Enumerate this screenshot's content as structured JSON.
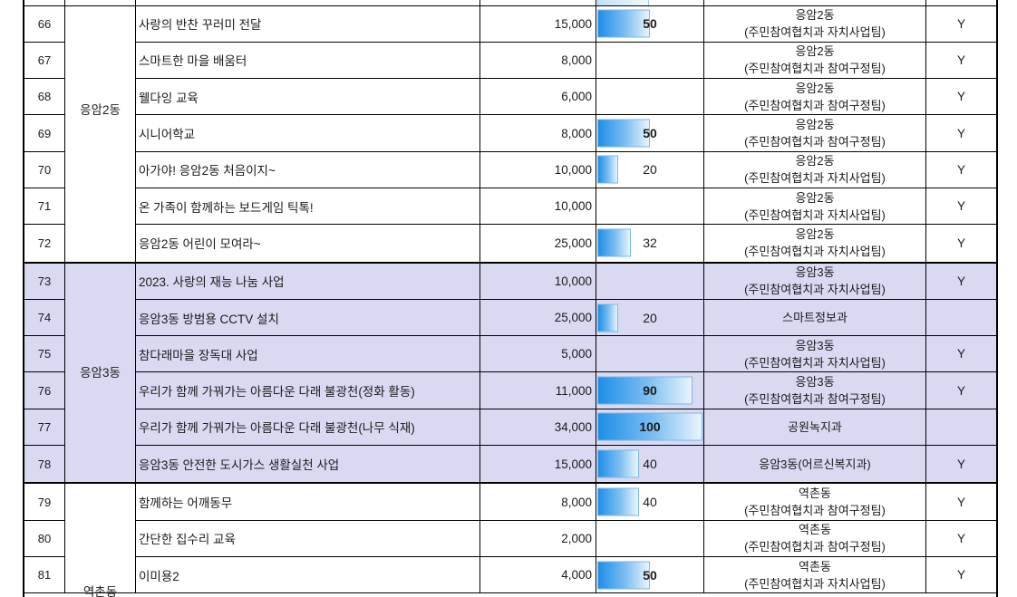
{
  "sheet": {
    "description": "Korean municipal participatory-budget project table, rows 66-81",
    "columns": [
      "row-number",
      "district",
      "project-name",
      "budget",
      "progress",
      "department",
      "flag"
    ],
    "colors": {
      "highlight_row_bg": "#D9D9F2",
      "bar_gradient_start": "#1E8EE9",
      "bar_gradient_end": "#E9F5FD",
      "bar_border": "#7AB8EA",
      "grid_line": "#000000",
      "text": "#1a1a1a"
    },
    "groups": [
      {
        "district": "응암2동",
        "highlight": false,
        "rows": [
          {
            "no": "66",
            "project": "사랑의 반찬 꾸러미 전달",
            "budget": "15,000",
            "progress": 50,
            "progress_bold": true,
            "dept_line1": "응암2동",
            "dept_line2": "(주민참여협치과 자치사업팀)",
            "flag": "Y"
          },
          {
            "no": "67",
            "project": "스마트한 마을 배움터",
            "budget": "8,000",
            "progress": null,
            "progress_bold": false,
            "dept_line1": "응암2동",
            "dept_line2": "(주민참여협치과 참여구정팀)",
            "flag": "Y"
          },
          {
            "no": "68",
            "project": "웰다잉 교육",
            "budget": "6,000",
            "progress": null,
            "progress_bold": false,
            "dept_line1": "응암2동",
            "dept_line2": "(주민참여협치과 참여구정팀)",
            "flag": "Y"
          },
          {
            "no": "69",
            "project": "시니어학교",
            "budget": "8,000",
            "progress": 50,
            "progress_bold": true,
            "dept_line1": "응암2동",
            "dept_line2": "(주민참여협치과 참여구정팀)",
            "flag": "Y"
          },
          {
            "no": "70",
            "project": "아가야! 응암2동 처음이지~",
            "budget": "10,000",
            "progress": 20,
            "progress_bold": false,
            "dept_line1": "응암2동",
            "dept_line2": "(주민참여협치과 자치사업팀)",
            "flag": "Y"
          },
          {
            "no": "71",
            "project": "온 가족이 함께하는 보드게임 틱톡!",
            "budget": "10,000",
            "progress": null,
            "progress_bold": false,
            "dept_line1": "응암2동",
            "dept_line2": "(주민참여협치과 자치사업팀)",
            "flag": "Y"
          },
          {
            "no": "72",
            "project": "응암2동 어린이 모여라~",
            "budget": "25,000",
            "progress": 32,
            "progress_bold": false,
            "dept_line1": "응암2동",
            "dept_line2": "(주민참여협치과 자치사업팀)",
            "flag": "Y"
          }
        ]
      },
      {
        "district": "응암3동",
        "highlight": true,
        "rows": [
          {
            "no": "73",
            "project": "2023. 사랑의 재능 나눔 사업",
            "budget": "10,000",
            "progress": null,
            "progress_bold": false,
            "dept_line1": "응암3동",
            "dept_line2": "(주민참여협치과 자치사업팀)",
            "flag": "Y"
          },
          {
            "no": "74",
            "project": "응암3동 방범용 CCTV 설치",
            "budget": "25,000",
            "progress": 20,
            "progress_bold": false,
            "dept_line1": "스마트정보과",
            "dept_line2": "",
            "flag": ""
          },
          {
            "no": "75",
            "project": "참다래마을 장독대 사업",
            "budget": "5,000",
            "progress": null,
            "progress_bold": false,
            "dept_line1": "응암3동",
            "dept_line2": "(주민참여협치과 자치사업팀)",
            "flag": "Y"
          },
          {
            "no": "76",
            "project": "우리가 함께 가꿔가는 아름다운 다래 불광천(정화 활동)",
            "budget": "11,000",
            "progress": 90,
            "progress_bold": true,
            "dept_line1": "응암3동",
            "dept_line2": "(주민참여협치과 참여구정팀)",
            "flag": "Y"
          },
          {
            "no": "77",
            "project": "우리가 함께 가꿔가는 아름다운 다래 불광천(나무 식재)",
            "budget": "34,000",
            "progress": 100,
            "progress_bold": true,
            "dept_line1": "공원녹지과",
            "dept_line2": "",
            "flag": ""
          },
          {
            "no": "78",
            "project": "응암3동 안전한 도시가스 생활실천 사업",
            "budget": "15,000",
            "progress": 40,
            "progress_bold": false,
            "dept_line1": "응암3동(어르신복지과)",
            "dept_line2": "",
            "flag": "Y"
          }
        ]
      },
      {
        "district": "역촌동",
        "highlight": false,
        "rows": [
          {
            "no": "79",
            "project": "함께하는 어깨동무",
            "budget": "8,000",
            "progress": 40,
            "progress_bold": false,
            "dept_line1": "역촌동",
            "dept_line2": "(주민참여협치과 참여구정팀)",
            "flag": "Y"
          },
          {
            "no": "80",
            "project": "간단한 집수리 교육",
            "budget": "2,000",
            "progress": null,
            "progress_bold": false,
            "dept_line1": "역촌동",
            "dept_line2": "(주민참여협치과 참여구정팀)",
            "flag": "Y"
          },
          {
            "no": "81",
            "project": "이미용2",
            "budget": "4,000",
            "progress": 50,
            "progress_bold": true,
            "dept_line1": "역촌동",
            "dept_line2": "(주민참여협치과 자치사업팀)",
            "flag": "Y"
          }
        ]
      }
    ],
    "top_partial_row": {
      "progress_sliver": 50
    }
  }
}
